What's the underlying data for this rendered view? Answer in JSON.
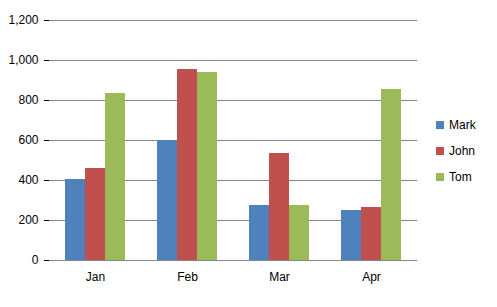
{
  "chart_data": {
    "type": "bar",
    "categories": [
      "Jan",
      "Feb",
      "Mar",
      "Apr"
    ],
    "series": [
      {
        "name": "Mark",
        "color": "#4f81bd",
        "values": [
          405,
          600,
          275,
          250
        ]
      },
      {
        "name": "John",
        "color": "#c0504d",
        "values": [
          460,
          955,
          535,
          265
        ]
      },
      {
        "name": "Tom",
        "color": "#9bbb59",
        "values": [
          835,
          940,
          275,
          855
        ]
      }
    ],
    "ylim": [
      0,
      1200
    ],
    "yticks": [
      0,
      200,
      400,
      600,
      800,
      1000,
      1200
    ],
    "grid": true,
    "legend": "right"
  }
}
